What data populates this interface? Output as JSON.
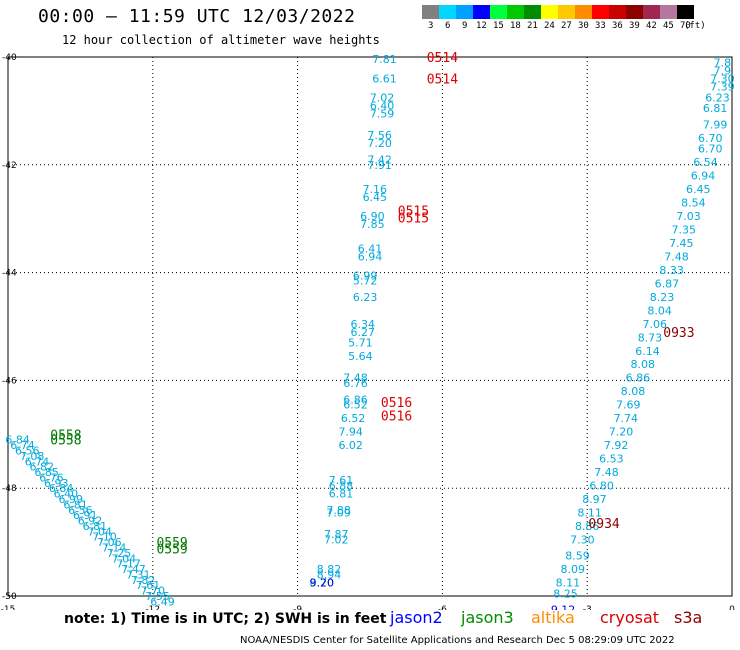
{
  "header": {
    "title": "00:00 — 11:59 UTC 12/03/2022",
    "subtitle": "12 hour collection of altimeter wave heights"
  },
  "legend": {
    "unit": "(ft)",
    "bins": [
      {
        "label": "3",
        "color": "#808080"
      },
      {
        "label": "6",
        "color": "#00d7ff"
      },
      {
        "label": "9",
        "color": "#00a0ff"
      },
      {
        "label": "12",
        "color": "#0000ff"
      },
      {
        "label": "15",
        "color": "#00ff3c"
      },
      {
        "label": "18",
        "color": "#00c800"
      },
      {
        "label": "21",
        "color": "#008c00"
      },
      {
        "label": "24",
        "color": "#ffff00"
      },
      {
        "label": "27",
        "color": "#ffc800"
      },
      {
        "label": "30",
        "color": "#ff8c00"
      },
      {
        "label": "33",
        "color": "#ff0000"
      },
      {
        "label": "36",
        "color": "#c80000"
      },
      {
        "label": "39",
        "color": "#8c0000"
      },
      {
        "label": "42",
        "color": "#a02850"
      },
      {
        "label": "45",
        "color": "#b478a0"
      },
      {
        "label": "70",
        "color": "#000000"
      }
    ]
  },
  "map": {
    "lon_range": [
      -15,
      0
    ],
    "lat_range": [
      -50,
      -40
    ],
    "x_ticks": [
      {
        "value": -15,
        "label": "-15"
      },
      {
        "value": -12,
        "label": "-12"
      },
      {
        "value": -9,
        "label": "-9"
      },
      {
        "value": -6,
        "label": "-6"
      },
      {
        "value": -3,
        "label": "-3"
      },
      {
        "value": 0,
        "label": "0"
      }
    ],
    "y_ticks": [
      {
        "value": -40,
        "label": "-40"
      },
      {
        "value": -42,
        "label": "-42"
      },
      {
        "value": -44,
        "label": "-44"
      },
      {
        "value": -46,
        "label": "-46"
      },
      {
        "value": -48,
        "label": "-48"
      },
      {
        "value": -50,
        "label": "-50"
      }
    ],
    "grid": true,
    "colors": {
      "jason3": "#007800",
      "sat_cyan": "#00aadc",
      "sat_blue": "#0000d2",
      "cryosat": "#dc0000",
      "s3a": "#8c0000"
    }
  },
  "tracks": [
    {
      "name": "track-center",
      "color": "#00aadc",
      "points": [
        {
          "lon": -7.2,
          "lat": -40.04,
          "v": "7.81"
        },
        {
          "lon": -7.2,
          "lat": -40.4,
          "v": "6.61"
        },
        {
          "lon": -7.25,
          "lat": -40.75,
          "v": "7.02"
        },
        {
          "lon": -7.25,
          "lat": -40.9,
          "v": "6.40"
        },
        {
          "lon": -7.25,
          "lat": -41.05,
          "v": "7.59"
        },
        {
          "lon": -7.3,
          "lat": -41.45,
          "v": "7.56"
        },
        {
          "lon": -7.3,
          "lat": -41.6,
          "v": "7.20"
        },
        {
          "lon": -7.3,
          "lat": -41.9,
          "v": "7.42"
        },
        {
          "lon": -7.3,
          "lat": -42.0,
          "v": "7.91"
        },
        {
          "lon": -7.4,
          "lat": -42.45,
          "v": "7.16"
        },
        {
          "lon": -7.4,
          "lat": -42.6,
          "v": "6.45"
        },
        {
          "lon": -7.45,
          "lat": -42.95,
          "v": "6.90"
        },
        {
          "lon": -7.45,
          "lat": -43.1,
          "v": "7.85"
        },
        {
          "lon": -7.5,
          "lat": -43.55,
          "v": "6.41"
        },
        {
          "lon": -7.5,
          "lat": -43.7,
          "v": "6.94"
        },
        {
          "lon": -7.6,
          "lat": -44.05,
          "v": "6.99"
        },
        {
          "lon": -7.6,
          "lat": -44.15,
          "v": "5.72"
        },
        {
          "lon": -7.6,
          "lat": -44.45,
          "v": "6.23"
        },
        {
          "lon": -7.65,
          "lat": -44.95,
          "v": "6.34"
        },
        {
          "lon": -7.65,
          "lat": -45.1,
          "v": "6.27"
        },
        {
          "lon": -7.7,
          "lat": -45.3,
          "v": "5.71"
        },
        {
          "lon": -7.7,
          "lat": -45.55,
          "v": "5.64"
        },
        {
          "lon": -7.8,
          "lat": -45.95,
          "v": "7.48"
        },
        {
          "lon": -7.8,
          "lat": -46.05,
          "v": "6.76"
        },
        {
          "lon": -7.8,
          "lat": -46.35,
          "v": "6.86"
        },
        {
          "lon": -7.8,
          "lat": -46.45,
          "v": "6.52"
        },
        {
          "lon": -7.85,
          "lat": -46.7,
          "v": "6.52"
        },
        {
          "lon": -7.9,
          "lat": -46.95,
          "v": "7.94"
        },
        {
          "lon": -7.9,
          "lat": -47.2,
          "v": "6.02"
        },
        {
          "lon": -8.1,
          "lat": -47.85,
          "v": "7.61"
        },
        {
          "lon": -8.1,
          "lat": -47.95,
          "v": "6.88"
        },
        {
          "lon": -8.1,
          "lat": -48.1,
          "v": "6.81"
        },
        {
          "lon": -8.15,
          "lat": -48.4,
          "v": "7.88"
        },
        {
          "lon": -8.15,
          "lat": -48.45,
          "v": "7.09"
        },
        {
          "lon": -8.2,
          "lat": -48.85,
          "v": "7.87"
        },
        {
          "lon": -8.2,
          "lat": -48.95,
          "v": "7.02"
        },
        {
          "lon": -8.35,
          "lat": -49.5,
          "v": "8.82"
        },
        {
          "lon": -8.35,
          "lat": -49.6,
          "v": "8.94"
        },
        {
          "lon": -8.5,
          "lat": -49.75,
          "v": "8.70"
        }
      ]
    },
    {
      "name": "track-center-blue",
      "color": "#0000d2",
      "points": [
        {
          "lon": -8.5,
          "lat": -49.75,
          "v": "9.20"
        }
      ]
    },
    {
      "name": "track-east",
      "color": "#00aadc",
      "points": [
        {
          "lon": -0.2,
          "lat": -40.1,
          "v": "7.8"
        },
        {
          "lon": -0.2,
          "lat": -40.25,
          "v": "7.9"
        },
        {
          "lon": -0.2,
          "lat": -40.4,
          "v": "7.30"
        },
        {
          "lon": -0.2,
          "lat": -40.55,
          "v": "7.39"
        },
        {
          "lon": -0.3,
          "lat": -40.75,
          "v": "6.23"
        },
        {
          "lon": -0.35,
          "lat": -40.95,
          "v": "6.81"
        },
        {
          "lon": -0.35,
          "lat": -41.25,
          "v": "7.99"
        },
        {
          "lon": -0.45,
          "lat": -41.5,
          "v": "6.70"
        },
        {
          "lon": -0.45,
          "lat": -41.7,
          "v": "6.70"
        },
        {
          "lon": -0.55,
          "lat": -41.95,
          "v": "6.54"
        },
        {
          "lon": -0.6,
          "lat": -42.2,
          "v": "6.94"
        },
        {
          "lon": -0.7,
          "lat": -42.45,
          "v": "6.45"
        },
        {
          "lon": -0.8,
          "lat": -42.7,
          "v": "8.54"
        },
        {
          "lon": -0.9,
          "lat": -42.95,
          "v": "7.03"
        },
        {
          "lon": -1.0,
          "lat": -43.2,
          "v": "7.35"
        },
        {
          "lon": -1.05,
          "lat": -43.45,
          "v": "7.45"
        },
        {
          "lon": -1.15,
          "lat": -43.7,
          "v": "7.48"
        },
        {
          "lon": -1.25,
          "lat": -43.95,
          "v": "8.33"
        },
        {
          "lon": -1.35,
          "lat": -44.2,
          "v": "6.87"
        },
        {
          "lon": -1.45,
          "lat": -44.45,
          "v": "8.23"
        },
        {
          "lon": -1.5,
          "lat": -44.7,
          "v": "8.04"
        },
        {
          "lon": -1.6,
          "lat": -44.95,
          "v": "7.06"
        },
        {
          "lon": -1.7,
          "lat": -45.2,
          "v": "8.73"
        },
        {
          "lon": -1.75,
          "lat": -45.45,
          "v": "6.14"
        },
        {
          "lon": -1.85,
          "lat": -45.7,
          "v": "8.08"
        },
        {
          "lon": -1.95,
          "lat": -45.95,
          "v": "6.86"
        },
        {
          "lon": -2.05,
          "lat": -46.2,
          "v": "8.08"
        },
        {
          "lon": -2.15,
          "lat": -46.45,
          "v": "7.69"
        },
        {
          "lon": -2.2,
          "lat": -46.7,
          "v": "7.74"
        },
        {
          "lon": -2.3,
          "lat": -46.95,
          "v": "7.20"
        },
        {
          "lon": -2.4,
          "lat": -47.2,
          "v": "7.92"
        },
        {
          "lon": -2.5,
          "lat": -47.45,
          "v": "6.53"
        },
        {
          "lon": -2.6,
          "lat": -47.7,
          "v": "7.48"
        },
        {
          "lon": -2.7,
          "lat": -47.95,
          "v": "6.80"
        },
        {
          "lon": -2.85,
          "lat": -48.2,
          "v": "8.97"
        },
        {
          "lon": -2.95,
          "lat": -48.45,
          "v": "8.11"
        },
        {
          "lon": -3.0,
          "lat": -48.7,
          "v": "8.86"
        },
        {
          "lon": -3.1,
          "lat": -48.95,
          "v": "7.30"
        },
        {
          "lon": -3.2,
          "lat": -49.25,
          "v": "8.59"
        },
        {
          "lon": -3.3,
          "lat": -49.5,
          "v": "8.09"
        },
        {
          "lon": -3.4,
          "lat": -49.75,
          "v": "8.11"
        },
        {
          "lon": -3.45,
          "lat": -49.95,
          "v": "8.25"
        }
      ]
    },
    {
      "name": "track-east-blue",
      "color": "#0000d2",
      "points": [
        {
          "lon": -3.5,
          "lat": -50.25,
          "v": "9.12"
        }
      ]
    },
    {
      "name": "track-west",
      "color": "#00aadc",
      "points": [
        {
          "lon": -14.8,
          "lat": -47.1,
          "v": "6.84"
        },
        {
          "lon": -14.7,
          "lat": -47.2,
          "v": "6.74"
        },
        {
          "lon": -14.6,
          "lat": -47.3,
          "v": "6.56"
        },
        {
          "lon": -14.5,
          "lat": -47.4,
          "v": "7.08"
        },
        {
          "lon": -14.4,
          "lat": -47.5,
          "v": "6.74"
        },
        {
          "lon": -14.3,
          "lat": -47.6,
          "v": "6.82"
        },
        {
          "lon": -14.2,
          "lat": -47.7,
          "v": "6.85"
        },
        {
          "lon": -14.1,
          "lat": -47.8,
          "v": "6.76"
        },
        {
          "lon": -14.0,
          "lat": -47.9,
          "v": "6.93"
        },
        {
          "lon": -13.9,
          "lat": -48.0,
          "v": "6.84"
        },
        {
          "lon": -13.8,
          "lat": -48.1,
          "v": "6.40"
        },
        {
          "lon": -13.7,
          "lat": -48.2,
          "v": "6.99"
        },
        {
          "lon": -13.6,
          "lat": -48.3,
          "v": "6.81"
        },
        {
          "lon": -13.5,
          "lat": -48.4,
          "v": "6.56"
        },
        {
          "lon": -13.4,
          "lat": -48.5,
          "v": "6.91"
        },
        {
          "lon": -13.3,
          "lat": -48.6,
          "v": "6.92"
        },
        {
          "lon": -13.2,
          "lat": -48.7,
          "v": "6.81"
        },
        {
          "lon": -13.1,
          "lat": -48.8,
          "v": "7.04"
        },
        {
          "lon": -13.0,
          "lat": -48.9,
          "v": "7.10"
        },
        {
          "lon": -12.9,
          "lat": -49.0,
          "v": "7.06"
        },
        {
          "lon": -12.8,
          "lat": -49.1,
          "v": "7.14"
        },
        {
          "lon": -12.7,
          "lat": -49.2,
          "v": "7.25"
        },
        {
          "lon": -12.6,
          "lat": -49.3,
          "v": "7.04"
        },
        {
          "lon": -12.5,
          "lat": -49.4,
          "v": "7.17"
        },
        {
          "lon": -12.4,
          "lat": -49.5,
          "v": "7.47"
        },
        {
          "lon": -12.3,
          "lat": -49.6,
          "v": "7.31"
        },
        {
          "lon": -12.2,
          "lat": -49.7,
          "v": "7.82"
        },
        {
          "lon": -12.1,
          "lat": -49.8,
          "v": "7.61"
        },
        {
          "lon": -12.0,
          "lat": -49.9,
          "v": "7.70"
        },
        {
          "lon": -11.9,
          "lat": -50.0,
          "v": "7.55"
        },
        {
          "lon": -11.8,
          "lat": -50.1,
          "v": "6.49"
        }
      ]
    }
  ],
  "time_labels": [
    {
      "lon": -6.0,
      "lat": -40.0,
      "text": "0514",
      "color": "#dc0000"
    },
    {
      "lon": -6.0,
      "lat": -40.4,
      "text": "0514",
      "color": "#dc0000"
    },
    {
      "lon": -6.6,
      "lat": -42.85,
      "text": "0515",
      "color": "#dc0000"
    },
    {
      "lon": -6.6,
      "lat": -42.98,
      "text": "0515",
      "color": "#dc0000"
    },
    {
      "lon": -6.95,
      "lat": -46.4,
      "text": "0516",
      "color": "#dc0000"
    },
    {
      "lon": -6.95,
      "lat": -46.65,
      "text": "0516",
      "color": "#dc0000"
    },
    {
      "lon": -1.1,
      "lat": -45.1,
      "text": "0933",
      "color": "#8c0000"
    },
    {
      "lon": -2.65,
      "lat": -48.65,
      "text": "0934",
      "color": "#8c0000"
    },
    {
      "lon": -13.8,
      "lat": -47.0,
      "text": "0558",
      "color": "#007800"
    },
    {
      "lon": -13.8,
      "lat": -47.1,
      "text": "0558",
      "color": "#007800"
    },
    {
      "lon": -11.6,
      "lat": -49.0,
      "text": "0559",
      "color": "#007800"
    },
    {
      "lon": -11.6,
      "lat": -49.12,
      "text": "0559",
      "color": "#007800"
    }
  ],
  "footer": {
    "note": "note: 1) Time is in UTC; 2) SWH is in feet",
    "missions": [
      {
        "name": "jason2",
        "color": "#0000ff"
      },
      {
        "name": "jason3",
        "color": "#008c00"
      },
      {
        "name": "altika",
        "color": "#ff8c00"
      },
      {
        "name": "cryosat",
        "color": "#dc0000"
      },
      {
        "name": "s3a",
        "color": "#8c0000"
      }
    ],
    "credit": "NOAA/NESDIS Center for Satellite Applications and Research    Dec  5 08:29:09 UTC 2022"
  }
}
